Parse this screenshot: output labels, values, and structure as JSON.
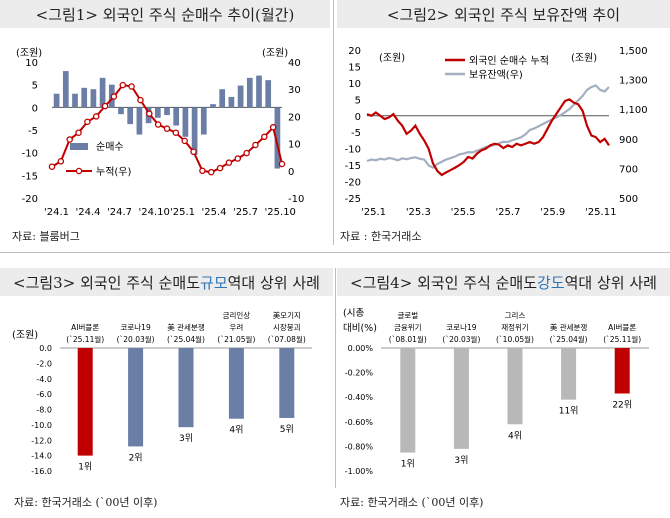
{
  "panels": {
    "p1": {
      "title": "<그림1> 외국인 주식 순매수 추이(월간)",
      "source": "자료: 블룸버그"
    },
    "p2": {
      "title": "<그림2> 외국인 주식 보유잔액 추이",
      "source": "자료 : 한국거래소"
    },
    "p3": {
      "title_pre": "<그림3> 외국인 주식 순매도 ",
      "title_hl": "규모",
      "title_post": " 역대 상위 사례",
      "source": "자료: 한국거래소 (`00년 이후)"
    },
    "p4": {
      "title_pre": "<그림4> 외국인 주식 순매도 ",
      "title_hl": "강도",
      "title_post": " 역대 상위 사례",
      "source": "자료: 한국거래소 (`00년 이후)"
    }
  },
  "colors": {
    "red": "#c00000",
    "blue": "#6a7ea6",
    "gray_line": "#a4afc2",
    "gray_bar": "#b8b8b8",
    "highlight": "#2e75b6"
  },
  "chart_data": [
    {
      "type": "bar",
      "id": "fig1",
      "title": "<그림1> 외국인 주식 순매수 추이(월간)",
      "left_unit": "(조원)",
      "right_unit": "(조원)",
      "left_ticks": [
        "10",
        "5",
        "0",
        "-5",
        "-10",
        "-15",
        "-20"
      ],
      "right_ticks": [
        "40",
        "30",
        "20",
        "10",
        "0",
        "-10"
      ],
      "ylim_left": [
        -20,
        10
      ],
      "ylim_right": [
        -10,
        40
      ],
      "x_ticks": [
        "'24.1",
        "'24.4",
        "'24.7",
        "'24.10",
        "'25.1",
        "'25.4",
        "'25.7",
        "'25.10"
      ],
      "legend": [
        "순매수",
        "누적(우)"
      ],
      "series": [
        {
          "name": "순매수",
          "type": "bar",
          "axis": "left",
          "values": [
            3.0,
            8.0,
            3.0,
            4.3,
            4.0,
            6.5,
            5.0,
            -1.5,
            -3.7,
            -6.0,
            -3.5,
            -2.3,
            -1.7,
            -4.0,
            -6.5,
            -10.5,
            -6.0,
            0.7,
            4.0,
            2.3,
            4.8,
            6.5,
            7.0,
            6.0,
            -13.5
          ]
        },
        {
          "name": "누적(우)",
          "type": "line",
          "axis": "right",
          "values": [
            1.5,
            3.5,
            11.5,
            14.0,
            18.0,
            20.0,
            23.8,
            27.3,
            31.5,
            31.0,
            26.0,
            21.0,
            17.0,
            15.5,
            14.0,
            11.0,
            7.0,
            0.0,
            -0.5,
            1.0,
            3.0,
            4.5,
            6.5,
            9.5,
            12.5,
            16.0,
            2.5
          ]
        }
      ]
    },
    {
      "type": "line",
      "id": "fig2",
      "title": "<그림2> 외국인 주식 보유잔액 추이",
      "left_unit": "(조원)",
      "right_unit": "(조원)",
      "left_ticks": [
        "20",
        "15",
        "10",
        "5",
        "0",
        "-5",
        "-10",
        "-15",
        "-20",
        "-25"
      ],
      "right_ticks": [
        "1,500",
        "1,300",
        "1,100",
        "900",
        "700",
        "500"
      ],
      "ylim_left": [
        -25,
        20
      ],
      "ylim_right": [
        500,
        1500
      ],
      "x_ticks": [
        "'25.1",
        "'25.3",
        "'25.5",
        "'25.7",
        "'25.9",
        "'25.11"
      ],
      "legend": [
        "외국인 순매수 누적",
        "보유잔액(우)"
      ],
      "series": [
        {
          "name": "외국인 순매수 누적",
          "axis": "left",
          "values": [
            0.5,
            0.0,
            1.0,
            0.0,
            -1.0,
            -0.5,
            0.5,
            -1.5,
            -3.0,
            -5.5,
            -4.5,
            -3.0,
            -5.5,
            -7.5,
            -10.0,
            -14.5,
            -16.8,
            -18.0,
            -17.2,
            -16.5,
            -15.8,
            -15.0,
            -14.0,
            -12.5,
            -13.0,
            -11.5,
            -10.5,
            -10.0,
            -9.0,
            -8.5,
            -8.8,
            -9.8,
            -9.0,
            -9.5,
            -8.5,
            -9.0,
            -8.5,
            -8.0,
            -8.5,
            -8.0,
            -6.5,
            -4.0,
            -1.5,
            0.5,
            2.5,
            4.5,
            5.0,
            4.0,
            3.5,
            1.5,
            -3.0,
            -6.0,
            -6.5,
            -8.0,
            -7.0,
            -9.0
          ]
        },
        {
          "name": "보유잔액(우)",
          "axis": "right",
          "values": [
            750,
            760,
            755,
            765,
            760,
            770,
            765,
            755,
            768,
            762,
            770,
            775,
            765,
            760,
            720,
            705,
            730,
            745,
            760,
            770,
            780,
            795,
            800,
            810,
            808,
            820,
            830,
            845,
            850,
            860,
            870,
            880,
            878,
            890,
            900,
            910,
            930,
            960,
            970,
            985,
            1000,
            1015,
            1030,
            1045,
            1060,
            1080,
            1100,
            1130,
            1160,
            1190,
            1230,
            1250,
            1260,
            1230,
            1220,
            1250
          ]
        }
      ]
    },
    {
      "type": "bar",
      "id": "fig3",
      "title": "<그림3> 외국인 주식 순매도 규모 역대 상위 사례",
      "unit": "(조원)",
      "y_ticks": [
        "0.0",
        "-2.0",
        "-4.0",
        "-6.0",
        "-8.0",
        "-10.0",
        "-12.0",
        "-14.0",
        "-16.0"
      ],
      "ylim": [
        -16,
        0
      ],
      "categories": [
        [
          "AI버블론",
          "(`25.11월)"
        ],
        [
          "코로나19",
          "(`20.03월)"
        ],
        [
          "美 관세분쟁",
          "(`25.04월)"
        ],
        [
          "금리인상",
          "우려",
          "(`21.05월)"
        ],
        [
          "美모기지",
          "시장붕괴",
          "(`07.08월)"
        ]
      ],
      "values": [
        -14.0,
        -12.8,
        -10.3,
        -9.2,
        -9.1
      ],
      "bar_labels": [
        "1위",
        "2위",
        "3위",
        "4위",
        "5위"
      ]
    },
    {
      "type": "bar",
      "id": "fig4",
      "title": "<그림4> 외국인 주식 순매도 강도 역대 상위 사례",
      "unit": "(시총 대비(%))",
      "unit_lines": [
        "(시총",
        "대비(%)"
      ],
      "y_ticks": [
        "0.00%",
        "-0.20%",
        "-0.40%",
        "-0.60%",
        "-0.80%",
        "-1.00%"
      ],
      "ylim": [
        -1.0,
        0
      ],
      "categories": [
        [
          "글로벌",
          "금융위기",
          "(`08.01월)"
        ],
        [
          "코로나19",
          "(`20.03월)"
        ],
        [
          "그리스",
          "재정위기",
          "(`10.05월)"
        ],
        [
          "美 관세분쟁",
          "(`25.04월)"
        ],
        [
          "AI버블론",
          "(`25.11월)"
        ]
      ],
      "values": [
        -0.85,
        -0.82,
        -0.62,
        -0.42,
        -0.37
      ],
      "bar_labels": [
        "1위",
        "3위",
        "4위",
        "11위",
        "22위"
      ]
    }
  ]
}
